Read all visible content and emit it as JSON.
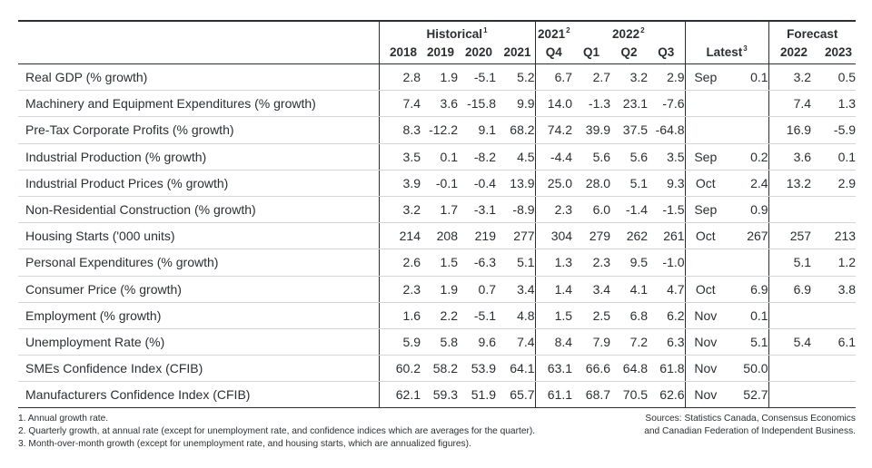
{
  "header": {
    "historical": "Historical",
    "historical_fn": "1",
    "q2021": "2021",
    "q2021_fn": "2",
    "q2022": "2022",
    "q2022_fn": "2",
    "forecast": "Forecast",
    "cols": [
      "2018",
      "2019",
      "2020",
      "2021",
      "Q4",
      "Q1",
      "Q2",
      "Q3"
    ],
    "latest": "Latest",
    "latest_fn": "3",
    "f2022": "2022",
    "f2023": "2023"
  },
  "rows": [
    {
      "label": "Real GDP (% growth)",
      "v": [
        "2.8",
        "1.9",
        "-5.1",
        "5.2",
        "6.7",
        "2.7",
        "3.2",
        "2.9"
      ],
      "month": "Sep",
      "latest": "0.1",
      "f": [
        "3.2",
        "0.5"
      ]
    },
    {
      "label": "Machinery and Equipment Expenditures (% growth)",
      "v": [
        "7.4",
        "3.6",
        "-15.8",
        "9.9",
        "14.0",
        "-1.3",
        "23.1",
        "-7.6"
      ],
      "month": "",
      "latest": "",
      "f": [
        "7.4",
        "1.3"
      ]
    },
    {
      "label": "Pre-Tax Corporate Profits (% growth)",
      "v": [
        "8.3",
        "-12.2",
        "9.1",
        "68.2",
        "74.2",
        "39.9",
        "37.5",
        "-64.8"
      ],
      "month": "",
      "latest": "",
      "f": [
        "16.9",
        "-5.9"
      ]
    },
    {
      "label": "Industrial Production (% growth)",
      "v": [
        "3.5",
        "0.1",
        "-8.2",
        "4.5",
        "-4.4",
        "5.6",
        "5.6",
        "3.5"
      ],
      "month": "Sep",
      "latest": "0.2",
      "f": [
        "3.6",
        "0.1"
      ]
    },
    {
      "label": "Industrial Product Prices (% growth)",
      "v": [
        "3.9",
        "-0.1",
        "-0.4",
        "13.9",
        "25.0",
        "28.0",
        "5.1",
        "9.3"
      ],
      "month": "Oct",
      "latest": "2.4",
      "f": [
        "13.2",
        "2.9"
      ]
    },
    {
      "label": "Non-Residential Construction (% growth)",
      "v": [
        "3.2",
        "1.7",
        "-3.1",
        "-8.9",
        "2.3",
        "6.0",
        "-1.4",
        "-1.5"
      ],
      "month": "Sep",
      "latest": "0.9",
      "f": [
        "",
        ""
      ]
    },
    {
      "label": "Housing Starts ('000 units)",
      "v": [
        "214",
        "208",
        "219",
        "277",
        "304",
        "279",
        "262",
        "261"
      ],
      "month": "Oct",
      "latest": "267",
      "f": [
        "257",
        "213"
      ]
    },
    {
      "label": "Personal Expenditures (% growth)",
      "v": [
        "2.6",
        "1.5",
        "-6.3",
        "5.1",
        "1.3",
        "2.3",
        "9.5",
        "-1.0"
      ],
      "month": "",
      "latest": "",
      "f": [
        "5.1",
        "1.2"
      ]
    },
    {
      "label": "Consumer Price (% growth)",
      "v": [
        "2.3",
        "1.9",
        "0.7",
        "3.4",
        "1.4",
        "3.4",
        "4.1",
        "4.7"
      ],
      "month": "Oct",
      "latest": "6.9",
      "f": [
        "6.9",
        "3.8"
      ]
    },
    {
      "label": "Employment (% growth)",
      "v": [
        "1.6",
        "2.2",
        "-5.1",
        "4.8",
        "1.5",
        "2.5",
        "6.8",
        "6.2"
      ],
      "month": "Nov",
      "latest": "0.1",
      "f": [
        "",
        ""
      ]
    },
    {
      "label": "Unemployment Rate (%)",
      "v": [
        "5.9",
        "5.8",
        "9.6",
        "7.4",
        "8.4",
        "7.9",
        "7.2",
        "6.3"
      ],
      "month": "Nov",
      "latest": "5.1",
      "f": [
        "5.4",
        "6.1"
      ]
    },
    {
      "label": "SMEs Confidence Index (CFIB)",
      "v": [
        "60.2",
        "58.2",
        "53.9",
        "64.1",
        "63.1",
        "66.6",
        "64.8",
        "61.8"
      ],
      "month": "Nov",
      "latest": "50.0",
      "f": [
        "",
        ""
      ]
    },
    {
      "label": "Manufacturers Confidence Index (CFIB)",
      "v": [
        "62.1",
        "59.3",
        "51.9",
        "65.7",
        "61.1",
        "68.7",
        "70.5",
        "62.6"
      ],
      "month": "Nov",
      "latest": "52.7",
      "f": [
        "",
        ""
      ]
    }
  ],
  "footnotes": [
    "1. Annual growth rate.",
    "2. Quarterly growth, at annual rate (except for unemployment rate, and confidence indices which are averages for the quarter).",
    "3. Month-over-month growth (except for unemployment rate, and housing starts, which are annualized figures)."
  ],
  "sources": [
    "Sources: Statistics Canada, Consensus Economics",
    "and Canadian Federation of Independent Business."
  ]
}
